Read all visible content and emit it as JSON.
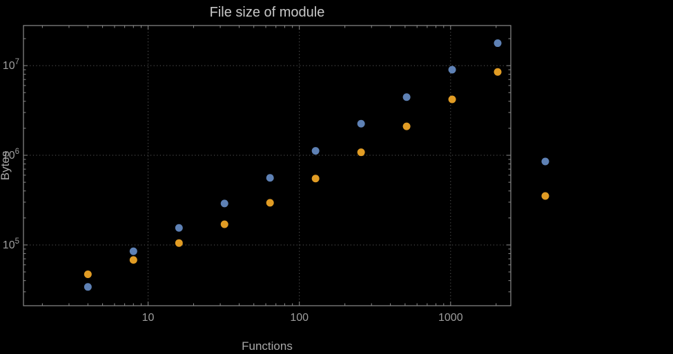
{
  "window": {
    "background": "#000000"
  },
  "chart_data": {
    "type": "scatter",
    "title": "File size of module",
    "xlabel": "Functions",
    "ylabel": "Bytes",
    "x_scale": "log",
    "y_scale": "log",
    "grid": "dotted-major-only",
    "xlim": [
      1.5,
      2500
    ],
    "ylim": [
      21000,
      28000000
    ],
    "x_ticks": [
      10,
      100,
      1000
    ],
    "y_tick_exponents": [
      5,
      6,
      7
    ],
    "x": [
      4,
      8,
      16,
      32,
      64,
      128,
      256,
      512,
      1024,
      2048
    ],
    "series": [
      {
        "color": "#5e81b5",
        "values": [
          34000,
          85000,
          155000,
          290000,
          560000,
          1120000,
          2250000,
          4450000,
          9000000,
          17800000
        ]
      },
      {
        "color": "#e19c24",
        "values": [
          47000,
          68000,
          105000,
          170000,
          295000,
          550000,
          1080000,
          2100000,
          4200000,
          8500000
        ]
      }
    ],
    "legend": {
      "position": "right-of-frame",
      "items": [
        {
          "color": "#5e81b5"
        },
        {
          "color": "#e19c24"
        }
      ]
    }
  },
  "style": {
    "colors": {
      "background": "#000000",
      "frame": "#8c8c8c",
      "grid": "#5c5c5c",
      "title": "#c8c8c8",
      "labels": "#a9a9a9",
      "tick_labels": "#9e9e9e"
    }
  }
}
